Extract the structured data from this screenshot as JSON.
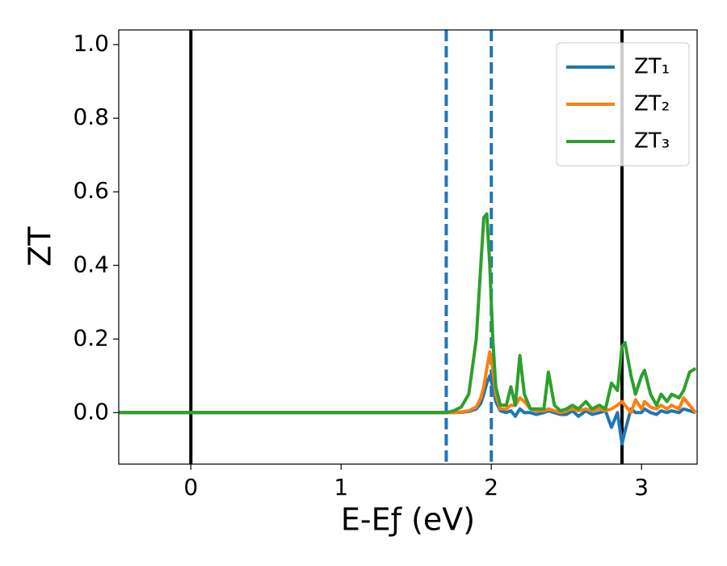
{
  "chart_data": {
    "type": "line",
    "x_label": "E-Eƒ (eV)",
    "y_label": "ZT",
    "x": [
      -0.48,
      1.7,
      1.75,
      1.8,
      1.85,
      1.9,
      1.93,
      1.95,
      1.97,
      1.99,
      2.01,
      2.03,
      2.06,
      2.1,
      2.13,
      2.16,
      2.19,
      2.22,
      2.26,
      2.3,
      2.35,
      2.38,
      2.42,
      2.46,
      2.5,
      2.54,
      2.58,
      2.63,
      2.67,
      2.72,
      2.76,
      2.8,
      2.84,
      2.87,
      2.89,
      2.93,
      2.96,
      3.0,
      3.02,
      3.06,
      3.1,
      3.13,
      3.17,
      3.2,
      3.25,
      3.28,
      3.32,
      3.36
    ],
    "series": [
      {
        "name": "ZT₁",
        "color": "#1f77b4",
        "values": [
          0,
          0,
          0,
          0.001,
          0.003,
          0.01,
          0.025,
          0.05,
          0.08,
          0.1,
          0.07,
          0.03,
          0.005,
          0.0,
          0.005,
          -0.01,
          0.01,
          0.0,
          0.0,
          -0.005,
          0.0,
          0.005,
          0.0,
          -0.005,
          -0.005,
          0.005,
          -0.01,
          0.005,
          -0.005,
          0.0,
          0.005,
          -0.04,
          0.0,
          -0.085,
          -0.05,
          0.01,
          0.0,
          0.0,
          0.01,
          0.0,
          -0.005,
          0.005,
          0.0,
          0.005,
          0.0,
          0.01,
          0.005,
          0.0
        ]
      },
      {
        "name": "ZT₂",
        "color": "#ff7f0e",
        "values": [
          0,
          0,
          0,
          0.002,
          0.005,
          0.015,
          0.04,
          0.07,
          0.12,
          0.165,
          0.12,
          0.05,
          0.01,
          0.01,
          0.02,
          0.02,
          0.04,
          0.03,
          0.01,
          0.005,
          0.005,
          0.01,
          0.005,
          0.0,
          0.005,
          0.01,
          0.005,
          0.01,
          0.005,
          0.01,
          0.005,
          0.01,
          0.02,
          0.03,
          0.02,
          0.0,
          0.035,
          0.01,
          0.03,
          0.015,
          0.01,
          0.02,
          0.01,
          0.02,
          0.01,
          0.04,
          0.02,
          0.0
        ]
      },
      {
        "name": "ZT₃",
        "color": "#2ca02c",
        "values": [
          0,
          0,
          0.005,
          0.015,
          0.05,
          0.2,
          0.4,
          0.53,
          0.54,
          0.4,
          0.2,
          0.07,
          0.02,
          0.02,
          0.07,
          0.02,
          0.155,
          0.05,
          0.01,
          0.01,
          0.01,
          0.11,
          0.02,
          0.005,
          0.01,
          0.02,
          0.01,
          0.03,
          0.01,
          0.02,
          0.01,
          0.08,
          0.06,
          0.18,
          0.19,
          0.1,
          0.05,
          0.1,
          0.115,
          0.05,
          0.02,
          0.05,
          0.03,
          0.05,
          0.04,
          0.06,
          0.11,
          0.12
        ]
      }
    ],
    "vlines": [
      {
        "x": 0,
        "color": "#000000",
        "style": "solid"
      },
      {
        "x": 2.87,
        "color": "#000000",
        "style": "solid"
      },
      {
        "x": 1.7,
        "color": "#1f77b4",
        "style": "dashed"
      },
      {
        "x": 2.0,
        "color": "#1f77b4",
        "style": "dashed"
      }
    ],
    "xlim": [
      -0.48,
      3.37
    ],
    "xticks": [
      0,
      1,
      2,
      3
    ],
    "ylim": [
      -0.14,
      1.04
    ],
    "yticks": [
      {
        "value": 0,
        "label": "0.0"
      },
      {
        "value": 0.2,
        "label": "0.2"
      },
      {
        "value": 0.4,
        "label": "0.4"
      },
      {
        "value": 0.6,
        "label": "0.6"
      },
      {
        "value": 0.8,
        "label": "0.8"
      },
      {
        "value": 1,
        "label": "1.0"
      }
    ],
    "legend": "upper right"
  }
}
